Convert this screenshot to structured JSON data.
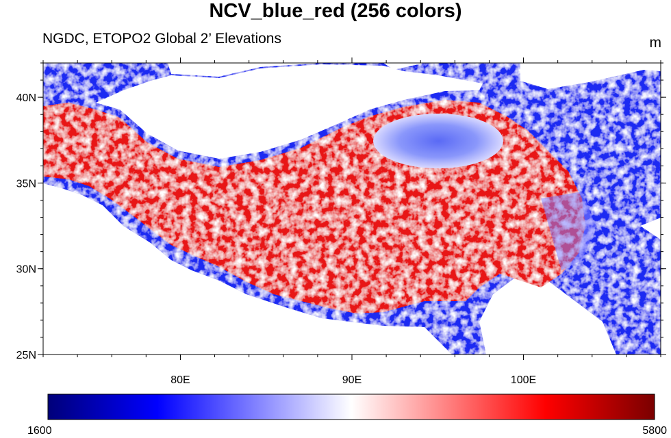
{
  "title": "NCV_blue_red (256 colors)",
  "subtitle": "NGDC, ETOPO2 Global 2’ Elevations",
  "units": "m",
  "colormap": {
    "name": "NCV_blue_red",
    "stops": [
      "#00007a",
      "#0000ff",
      "#ffffff",
      "#ff0000",
      "#7a0000"
    ]
  },
  "colorbar": {
    "min_label": "1600",
    "max_label": "5800"
  },
  "map": {
    "lon_range": [
      72,
      108
    ],
    "lat_range": [
      25,
      42
    ],
    "lat_ticks": [
      {
        "value": 40,
        "label": "40N"
      },
      {
        "value": 35,
        "label": "35N"
      },
      {
        "value": 30,
        "label": "30N"
      },
      {
        "value": 25,
        "label": "25N"
      }
    ],
    "lon_ticks": [
      {
        "value": 80,
        "label": "80E"
      },
      {
        "value": 90,
        "label": "90E"
      },
      {
        "value": 100,
        "label": "100E"
      }
    ]
  }
}
